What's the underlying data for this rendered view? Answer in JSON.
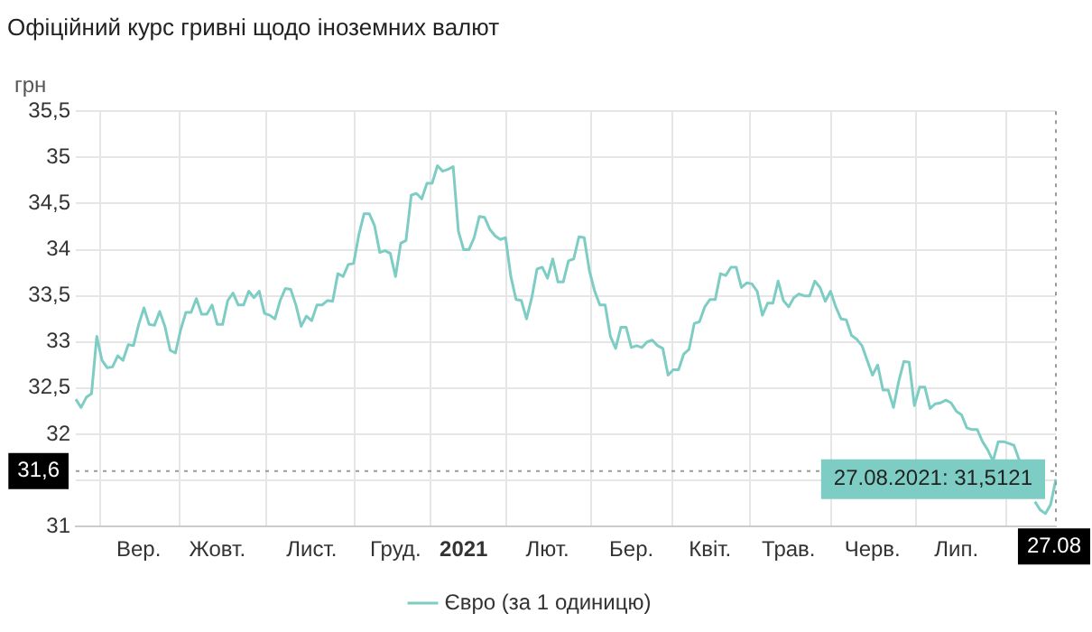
{
  "chart_data": {
    "type": "line",
    "title": "Офіційний курс гривні щодо іноземних валют",
    "ylabel": "грн",
    "categories": [
      null,
      null,
      null,
      null,
      null,
      null,
      null,
      null,
      null,
      null,
      null,
      null,
      "Вер.",
      null,
      null,
      null,
      null,
      null,
      null,
      null,
      null,
      null,
      null,
      null,
      null,
      null,
      null,
      "Жовт.",
      null,
      null,
      null,
      null,
      null,
      null,
      null,
      null,
      null,
      null,
      null,
      null,
      null,
      null,
      null,
      null,
      null,
      "Лист.",
      null,
      null,
      null,
      null,
      null,
      null,
      null,
      null,
      null,
      null,
      null,
      null,
      null,
      null,
      null,
      "Груд.",
      null,
      null,
      null,
      null,
      null,
      null,
      null,
      null,
      null,
      null,
      null,
      null,
      "2021",
      null,
      null,
      null,
      null,
      null,
      null,
      null,
      null,
      null,
      null,
      null,
      null,
      null,
      null,
      null,
      "Лют.",
      null,
      null,
      null,
      null,
      null,
      null,
      null,
      null,
      null,
      null,
      null,
      null,
      null,
      null,
      null,
      "Бер.",
      null,
      null,
      null,
      null,
      null,
      null,
      null,
      null,
      null,
      null,
      null,
      null,
      null,
      null,
      "Квіт.",
      null,
      null,
      null,
      null,
      null,
      null,
      null,
      null,
      null,
      null,
      null,
      null,
      null,
      null,
      "Трав.",
      null,
      null,
      null,
      null,
      null,
      null,
      null,
      null,
      null,
      null,
      null,
      null,
      null,
      null,
      null,
      "Черв.",
      null,
      null,
      null,
      null,
      null,
      null,
      null,
      null,
      null,
      null,
      null,
      null,
      null,
      null,
      null,
      "Лип.",
      null,
      null,
      null,
      null,
      null,
      null,
      null,
      null,
      null,
      null,
      null,
      null,
      null,
      null,
      null,
      null,
      null,
      null,
      "27.08"
    ],
    "ylim": [
      31,
      35.5
    ],
    "yticks": [
      {
        "value": 31,
        "label": "31"
      },
      {
        "value": 31.5,
        "label": null
      },
      {
        "value": 32,
        "label": "32"
      },
      {
        "value": 32.5,
        "label": "32,5"
      },
      {
        "value": 33,
        "label": "33"
      },
      {
        "value": 33.5,
        "label": "33,5"
      },
      {
        "value": 34,
        "label": "34"
      },
      {
        "value": 34.5,
        "label": "34,5"
      },
      {
        "value": 35,
        "label": "35"
      },
      {
        "value": 35.5,
        "label": "35,5"
      }
    ],
    "grid": true,
    "legend": "bottom",
    "line_style": "solid",
    "ref_lines": [
      {
        "axis": "y",
        "value": 31.6,
        "label": "31,6"
      },
      {
        "axis": "x",
        "value": "27.08"
      }
    ],
    "annotations": [
      {
        "text": "27.08.2021: 31,5121",
        "x": "27.08",
        "y": 31.5121
      }
    ],
    "series": [
      {
        "name": "Євро (за 1 одиницю)",
        "color": "#7ecdc4",
        "values": [
          32.38,
          32.29,
          32.4,
          32.44,
          33.06,
          32.8,
          32.72,
          32.73,
          32.85,
          32.8,
          32.97,
          32.96,
          33.19,
          33.37,
          33.19,
          33.18,
          33.33,
          33.17,
          32.91,
          32.88,
          33.13,
          33.32,
          33.32,
          33.47,
          33.3,
          33.3,
          33.4,
          33.19,
          33.19,
          33.45,
          33.53,
          33.4,
          33.4,
          33.55,
          33.48,
          33.55,
          33.31,
          33.29,
          33.25,
          33.45,
          33.58,
          33.57,
          33.4,
          33.17,
          33.28,
          33.23,
          33.4,
          33.4,
          33.45,
          33.44,
          33.74,
          33.71,
          33.84,
          33.85,
          34.16,
          34.39,
          34.39,
          34.26,
          33.97,
          33.99,
          33.96,
          33.71,
          34.07,
          34.1,
          34.59,
          34.61,
          34.55,
          34.72,
          34.72,
          34.91,
          34.85,
          34.87,
          34.9,
          34.2,
          34.0,
          34.0,
          34.13,
          34.36,
          34.35,
          34.22,
          34.15,
          34.11,
          34.13,
          33.71,
          33.46,
          33.45,
          33.25,
          33.48,
          33.79,
          33.81,
          33.69,
          33.9,
          33.65,
          33.65,
          33.88,
          33.9,
          34.14,
          34.13,
          33.77,
          33.55,
          33.4,
          33.4,
          33.06,
          32.93,
          33.16,
          33.16,
          32.94,
          32.96,
          32.94,
          33.0,
          33.02,
          32.96,
          32.93,
          32.64,
          32.7,
          32.7,
          32.87,
          32.92,
          33.2,
          33.22,
          33.38,
          33.46,
          33.46,
          33.74,
          33.72,
          33.81,
          33.81,
          33.59,
          33.64,
          33.63,
          33.55,
          33.29,
          33.42,
          33.42,
          33.66,
          33.45,
          33.38,
          33.48,
          33.52,
          33.5,
          33.5,
          33.66,
          33.59,
          33.44,
          33.55,
          33.38,
          33.25,
          33.24,
          33.07,
          33.03,
          32.96,
          32.8,
          32.64,
          32.75,
          32.48,
          32.48,
          32.29,
          32.57,
          32.79,
          32.78,
          32.31,
          32.51,
          32.51,
          32.28,
          32.33,
          32.34,
          32.37,
          32.34,
          32.25,
          32.21,
          32.07,
          32.05,
          32.05,
          31.92,
          31.83,
          31.71,
          31.92,
          31.92,
          31.9,
          31.88,
          31.72,
          null,
          null,
          31.27,
          31.18,
          31.14,
          31.24,
          31.5121
        ]
      }
    ]
  }
}
